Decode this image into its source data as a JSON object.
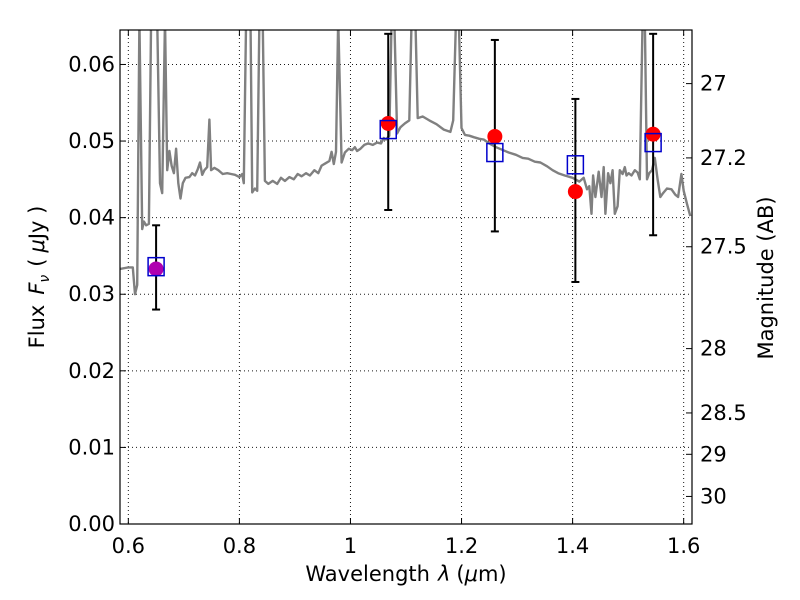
{
  "colors": {
    "spectrum": "#808080",
    "observed": "#ff0000",
    "model": "#0000cc",
    "overlap": "#b000b0",
    "errorbar": "#000000"
  },
  "chart_data": {
    "type": "scatter",
    "xlabel_text": "Wavelength",
    "xlabel_symbol": "λ",
    "xlabel_unit_open": "(",
    "xlabel_unit_mu": "μ",
    "xlabel_unit_rest": "m)",
    "ylabel_text": "Flux",
    "ylabel_symbol": "F",
    "ylabel_sub": "ν",
    "ylabel_unit_open": "(",
    "ylabel_unit_mu": "μ",
    "ylabel_unit_rest": "Jy )",
    "y2label": "Magnitude (AB)",
    "xlim": [
      0.585,
      1.615
    ],
    "ylim": [
      0.0,
      0.0645
    ],
    "grid": true,
    "xticks": [
      {
        "value": 0.6,
        "label": "0.6"
      },
      {
        "value": 0.8,
        "label": "0.8"
      },
      {
        "value": 1.0,
        "label": "1"
      },
      {
        "value": 1.2,
        "label": "1.2"
      },
      {
        "value": 1.4,
        "label": "1.4"
      },
      {
        "value": 1.6,
        "label": "1.6"
      }
    ],
    "yticks": [
      {
        "value": 0.0,
        "label": "0.00"
      },
      {
        "value": 0.01,
        "label": "0.01"
      },
      {
        "value": 0.02,
        "label": "0.02"
      },
      {
        "value": 0.03,
        "label": "0.03"
      },
      {
        "value": 0.04,
        "label": "0.04"
      },
      {
        "value": 0.05,
        "label": "0.05"
      },
      {
        "value": 0.06,
        "label": "0.06"
      }
    ],
    "y2ticks": [
      {
        "flux": 0.0575,
        "label": "27"
      },
      {
        "flux": 0.0478,
        "label": "27.2"
      },
      {
        "flux": 0.0362,
        "label": "27.5"
      },
      {
        "flux": 0.0229,
        "label": "28"
      },
      {
        "flux": 0.0145,
        "label": "28.5"
      },
      {
        "flux": 0.0091,
        "label": "29"
      },
      {
        "flux": 0.0036,
        "label": "30"
      }
    ],
    "series": [
      {
        "kind": "line",
        "points": [
          [
            0.585,
            0.0333
          ],
          [
            0.6,
            0.0335
          ],
          [
            0.608,
            0.0335
          ],
          [
            0.612,
            0.03
          ],
          [
            0.616,
            0.0312
          ],
          [
            0.62,
            0.066
          ],
          [
            0.625,
            0.0385
          ],
          [
            0.628,
            0.0395
          ],
          [
            0.632,
            0.039
          ],
          [
            0.637,
            0.0392
          ],
          [
            0.641,
            0.066
          ],
          [
            0.652,
            0.066
          ],
          [
            0.657,
            0.0445
          ],
          [
            0.661,
            0.0432
          ],
          [
            0.666,
            0.066
          ],
          [
            0.67,
            0.0462
          ],
          [
            0.674,
            0.0487
          ],
          [
            0.678,
            0.0468
          ],
          [
            0.682,
            0.0458
          ],
          [
            0.686,
            0.049
          ],
          [
            0.69,
            0.0445
          ],
          [
            0.694,
            0.0425
          ],
          [
            0.698,
            0.0445
          ],
          [
            0.703,
            0.0452
          ],
          [
            0.71,
            0.0453
          ],
          [
            0.715,
            0.0458
          ],
          [
            0.72,
            0.0455
          ],
          [
            0.725,
            0.0463
          ],
          [
            0.729,
            0.0472
          ],
          [
            0.733,
            0.0456
          ],
          [
            0.737,
            0.0462
          ],
          [
            0.742,
            0.0466
          ],
          [
            0.746,
            0.0528
          ],
          [
            0.749,
            0.0462
          ],
          [
            0.755,
            0.0465
          ],
          [
            0.762,
            0.0462
          ],
          [
            0.77,
            0.0457
          ],
          [
            0.778,
            0.0458
          ],
          [
            0.785,
            0.0457
          ],
          [
            0.792,
            0.0456
          ],
          [
            0.8,
            0.0453
          ],
          [
            0.805,
            0.0457
          ],
          [
            0.808,
            0.0445
          ],
          [
            0.812,
            0.066
          ],
          [
            0.82,
            0.066
          ],
          [
            0.823,
            0.0433
          ],
          [
            0.828,
            0.0438
          ],
          [
            0.832,
            0.0435
          ],
          [
            0.836,
            0.066
          ],
          [
            0.842,
            0.066
          ],
          [
            0.846,
            0.0448
          ],
          [
            0.852,
            0.0444
          ],
          [
            0.86,
            0.0448
          ],
          [
            0.868,
            0.0444
          ],
          [
            0.875,
            0.0452
          ],
          [
            0.882,
            0.0448
          ],
          [
            0.89,
            0.0453
          ],
          [
            0.898,
            0.045
          ],
          [
            0.905,
            0.0457
          ],
          [
            0.912,
            0.0454
          ],
          [
            0.92,
            0.0458
          ],
          [
            0.927,
            0.0455
          ],
          [
            0.935,
            0.0462
          ],
          [
            0.942,
            0.0458
          ],
          [
            0.948,
            0.0468
          ],
          [
            0.955,
            0.0471
          ],
          [
            0.962,
            0.0474
          ],
          [
            0.966,
            0.0486
          ],
          [
            0.97,
            0.047
          ],
          [
            0.974,
            0.0486
          ],
          [
            0.978,
            0.066
          ],
          [
            0.984,
            0.0472
          ],
          [
            0.99,
            0.0485
          ],
          [
            0.997,
            0.049
          ],
          [
            1.003,
            0.0488
          ],
          [
            1.008,
            0.0492
          ],
          [
            1.012,
            0.0487
          ],
          [
            1.018,
            0.049
          ],
          [
            1.025,
            0.0495
          ],
          [
            1.032,
            0.0497
          ],
          [
            1.04,
            0.0495
          ],
          [
            1.048,
            0.0498
          ],
          [
            1.055,
            0.0497
          ],
          [
            1.06,
            0.0504
          ],
          [
            1.064,
            0.0502
          ],
          [
            1.07,
            0.0507
          ],
          [
            1.074,
            0.066
          ],
          [
            1.079,
            0.066
          ],
          [
            1.084,
            0.051
          ],
          [
            1.09,
            0.0518
          ],
          [
            1.098,
            0.0523
          ],
          [
            1.106,
            0.0527
          ],
          [
            1.11,
            0.066
          ],
          [
            1.117,
            0.066
          ],
          [
            1.121,
            0.053
          ],
          [
            1.13,
            0.0532
          ],
          [
            1.142,
            0.0527
          ],
          [
            1.155,
            0.0522
          ],
          [
            1.168,
            0.0515
          ],
          [
            1.18,
            0.0512
          ],
          [
            1.185,
            0.0527
          ],
          [
            1.19,
            0.066
          ],
          [
            1.195,
            0.066
          ],
          [
            1.2,
            0.0517
          ],
          [
            1.206,
            0.0508
          ],
          [
            1.214,
            0.0507
          ],
          [
            1.222,
            0.0505
          ],
          [
            1.232,
            0.0503
          ],
          [
            1.24,
            0.0502
          ],
          [
            1.25,
            0.0497
          ],
          [
            1.262,
            0.0492
          ],
          [
            1.275,
            0.0488
          ],
          [
            1.285,
            0.0485
          ],
          [
            1.298,
            0.0482
          ],
          [
            1.31,
            0.0478
          ],
          [
            1.32,
            0.0477
          ],
          [
            1.332,
            0.0473
          ],
          [
            1.342,
            0.0472
          ],
          [
            1.354,
            0.0467
          ],
          [
            1.364,
            0.0462
          ],
          [
            1.374,
            0.0458
          ],
          [
            1.386,
            0.0455
          ],
          [
            1.4,
            0.0452
          ],
          [
            1.412,
            0.0447
          ],
          [
            1.42,
            0.0452
          ],
          [
            1.426,
            0.0437
          ],
          [
            1.43,
            0.0441
          ],
          [
            1.434,
            0.0405
          ],
          [
            1.437,
            0.0455
          ],
          [
            1.441,
            0.0427
          ],
          [
            1.447,
            0.046
          ],
          [
            1.452,
            0.0427
          ],
          [
            1.456,
            0.0466
          ],
          [
            1.459,
            0.0405
          ],
          [
            1.464,
            0.0458
          ],
          [
            1.468,
            0.0445
          ],
          [
            1.472,
            0.0462
          ],
          [
            1.476,
            0.0405
          ],
          [
            1.481,
            0.0415
          ],
          [
            1.485,
            0.0462
          ],
          [
            1.49,
            0.0457
          ],
          [
            1.494,
            0.0466
          ],
          [
            1.497,
            0.0455
          ],
          [
            1.501,
            0.0458
          ],
          [
            1.506,
            0.0455
          ],
          [
            1.512,
            0.0462
          ],
          [
            1.517,
            0.0459
          ],
          [
            1.521,
            0.045
          ],
          [
            1.526,
            0.066
          ],
          [
            1.53,
            0.066
          ],
          [
            1.534,
            0.045
          ],
          [
            1.538,
            0.0458
          ],
          [
            1.543,
            0.0462
          ],
          [
            1.548,
            0.0478
          ],
          [
            1.553,
            0.045
          ],
          [
            1.558,
            0.0427
          ],
          [
            1.563,
            0.0432
          ],
          [
            1.57,
            0.0438
          ],
          [
            1.578,
            0.0437
          ],
          [
            1.585,
            0.043
          ],
          [
            1.59,
            0.0427
          ],
          [
            1.596,
            0.0457
          ],
          [
            1.6,
            0.0435
          ],
          [
            1.606,
            0.0418
          ],
          [
            1.612,
            0.0402
          ]
        ]
      },
      {
        "kind": "observed",
        "marker": "circle",
        "points": [
          {
            "x": 0.65,
            "y": 0.0333,
            "yerr": [
              0.028,
              0.039
            ]
          },
          {
            "x": 1.068,
            "y": 0.0523,
            "yerr": [
              0.041,
              0.064
            ]
          },
          {
            "x": 1.26,
            "y": 0.0506,
            "yerr": [
              0.0382,
              0.0632
            ]
          },
          {
            "x": 1.405,
            "y": 0.0434,
            "yerr": [
              0.0316,
              0.0555
            ]
          },
          {
            "x": 1.545,
            "y": 0.0509,
            "yerr": [
              0.0377,
              0.064
            ]
          }
        ]
      },
      {
        "kind": "model",
        "marker": "square",
        "points": [
          {
            "x": 0.65,
            "y": 0.0336
          },
          {
            "x": 1.068,
            "y": 0.0515
          },
          {
            "x": 1.26,
            "y": 0.0485
          },
          {
            "x": 1.405,
            "y": 0.0469
          },
          {
            "x": 1.545,
            "y": 0.0498
          }
        ]
      }
    ]
  }
}
